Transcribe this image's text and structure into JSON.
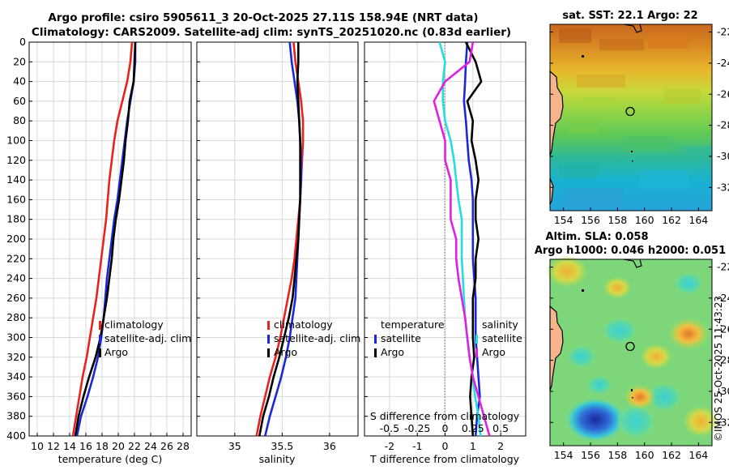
{
  "header": {
    "title_line1": "Argo profile: csiro 5905611_3 20-Oct-2025 27.11S 158.94E (NRT data)",
    "title_line2": "Climatology: CARS2009. Satellite-adj clim: synTS_20251020.nc (0.83d earlier)"
  },
  "stamp": "©IMOS 25-Oct-2025 11:43:23",
  "colors": {
    "climatology": "#e8221c",
    "satellite": "#1a28d8",
    "argo": "#000000",
    "temp_diff": "#22dede",
    "sal_diff": "#e020e0"
  },
  "chart_data": [
    {
      "type": "line",
      "panel": "temperature",
      "xlabel": "temperature (deg C)",
      "ylabel": "depth",
      "xlim": [
        9,
        29
      ],
      "ylim": [
        0,
        400
      ],
      "xticks": [
        "10",
        "12",
        "14",
        "16",
        "18",
        "20",
        "22",
        "24",
        "26",
        "28"
      ],
      "yticks": [
        "0",
        "20",
        "40",
        "60",
        "80",
        "100",
        "120",
        "140",
        "160",
        "180",
        "200",
        "220",
        "240",
        "260",
        "280",
        "300",
        "320",
        "340",
        "360",
        "380",
        "400"
      ],
      "legend": [
        "climatology",
        "satellite-adj. clim",
        "Argo"
      ],
      "depth": [
        0,
        20,
        40,
        60,
        80,
        100,
        120,
        140,
        160,
        180,
        200,
        220,
        240,
        260,
        280,
        300,
        320,
        340,
        360,
        380,
        400
      ],
      "series": [
        {
          "name": "climatology",
          "values": [
            21.7,
            21.5,
            21.1,
            20.5,
            19.9,
            19.5,
            19.2,
            18.9,
            18.7,
            18.5,
            18.2,
            17.9,
            17.6,
            17.3,
            16.9,
            16.5,
            16.1,
            15.6,
            15.2,
            14.8,
            14.4
          ]
        },
        {
          "name": "satellite-adj. clim",
          "values": [
            22.1,
            22.1,
            21.9,
            21.5,
            21.1,
            20.8,
            20.5,
            20.2,
            19.9,
            19.5,
            19.2,
            18.9,
            18.6,
            18.4,
            18.2,
            17.9,
            17.5,
            16.9,
            16.2,
            15.4,
            14.9
          ]
        },
        {
          "name": "Argo",
          "values": [
            22.1,
            22.0,
            21.9,
            21.4,
            21.2,
            20.9,
            20.7,
            20.4,
            20.1,
            19.7,
            19.4,
            19.2,
            18.9,
            18.6,
            18.2,
            17.8,
            17.2,
            16.4,
            15.7,
            15.1,
            14.7
          ]
        }
      ]
    },
    {
      "type": "line",
      "panel": "salinity",
      "xlabel": "salinity",
      "xlim": [
        34.6,
        36.3
      ],
      "ylim": [
        0,
        400
      ],
      "xticks": [
        "35",
        "35.5",
        "36"
      ],
      "xtick_values": [
        35,
        35.5,
        36
      ],
      "legend": [
        "climatology",
        "satellite-adj. clim",
        "Argo"
      ],
      "depth": [
        0,
        20,
        40,
        60,
        80,
        100,
        120,
        140,
        160,
        180,
        200,
        220,
        240,
        260,
        280,
        300,
        320,
        340,
        360,
        380,
        400
      ],
      "series": [
        {
          "name": "climatology",
          "values": [
            35.62,
            35.64,
            35.67,
            35.7,
            35.72,
            35.72,
            35.71,
            35.7,
            35.69,
            35.67,
            35.65,
            35.63,
            35.6,
            35.56,
            35.52,
            35.48,
            35.43,
            35.37,
            35.32,
            35.27,
            35.23
          ]
        },
        {
          "name": "satellite-adj. clim",
          "values": [
            35.58,
            35.6,
            35.63,
            35.66,
            35.68,
            35.69,
            35.7,
            35.7,
            35.69,
            35.68,
            35.67,
            35.66,
            35.65,
            35.64,
            35.61,
            35.58,
            35.54,
            35.49,
            35.43,
            35.37,
            35.32
          ]
        },
        {
          "name": "Argo",
          "values": [
            35.67,
            35.67,
            35.66,
            35.67,
            35.68,
            35.69,
            35.69,
            35.69,
            35.69,
            35.68,
            35.67,
            35.65,
            35.63,
            35.61,
            35.57,
            35.52,
            35.47,
            35.41,
            35.36,
            35.3,
            35.26
          ]
        }
      ]
    },
    {
      "type": "line",
      "panel": "difference",
      "xlabel": "T difference from climatology",
      "xlabel_top": "S difference from climatology",
      "xlim": [
        -2.9,
        2.9
      ],
      "ylim": [
        0,
        400
      ],
      "xticks": [
        "-2",
        "-1",
        "0",
        "1",
        "2"
      ],
      "xtick_values": [
        -2,
        -1,
        0,
        1,
        2
      ],
      "sticks": [
        "-0.5",
        "-0.25",
        "0",
        "0.25",
        "0.5"
      ],
      "legend_left_title": "temperature",
      "legend_right_title": "salinity",
      "legend_left": [
        "satellite",
        "Argo"
      ],
      "legend_right": [
        "satellite",
        "Argo"
      ],
      "depth": [
        0,
        20,
        40,
        60,
        80,
        100,
        120,
        140,
        160,
        180,
        200,
        220,
        240,
        260,
        280,
        300,
        320,
        340,
        360,
        380,
        400
      ],
      "series": [
        {
          "name": "temperature satellite",
          "values": [
            0.8,
            0.75,
            0.72,
            0.68,
            0.75,
            0.8,
            0.85,
            0.95,
            1.0,
            1.0,
            1.0,
            1.0,
            1.05,
            1.1,
            1.1,
            1.1,
            1.15,
            1.2,
            1.25,
            1.15,
            1.1
          ]
        },
        {
          "name": "temperature Argo",
          "values": [
            0.75,
            1.1,
            1.3,
            0.8,
            1.0,
            0.95,
            1.1,
            1.2,
            1.1,
            1.1,
            1.2,
            1.1,
            1.1,
            1.0,
            1.0,
            1.0,
            1.05,
            0.95,
            0.9,
            0.95,
            1.0
          ]
        },
        {
          "name": "salinity satellite",
          "values": [
            -0.05,
            0.0,
            -0.02,
            -0.02,
            0.0,
            0.05,
            0.08,
            0.1,
            0.12,
            0.15,
            0.15,
            0.15,
            0.16,
            0.17,
            0.18,
            0.2,
            0.22,
            0.25,
            0.27,
            0.3,
            0.32
          ]
        },
        {
          "name": "salinity Argo",
          "values": [
            0.25,
            0.22,
            0.0,
            -0.1,
            -0.05,
            0.0,
            0.0,
            0.05,
            0.05,
            0.05,
            0.1,
            0.1,
            0.12,
            0.15,
            0.18,
            0.2,
            0.22,
            0.25,
            0.3,
            0.35,
            0.4
          ]
        }
      ]
    },
    {
      "type": "heatmap",
      "panel": "sat_sst",
      "title": "sat. SST: 22.1 Argo: 22",
      "xlim": [
        153,
        165
      ],
      "ylim": [
        -33.5,
        -21.5
      ],
      "xticks": [
        "154",
        "156",
        "158",
        "160",
        "162",
        "164"
      ],
      "xtick_values": [
        154,
        156,
        158,
        160,
        162,
        164
      ],
      "yticks": [
        "-22",
        "-24",
        "-26",
        "-28",
        "-30",
        "-32"
      ],
      "ytick_values": [
        -22,
        -24,
        -26,
        -28,
        -30,
        -32
      ],
      "marker": {
        "lon": 158.94,
        "lat": -27.11
      }
    },
    {
      "type": "heatmap",
      "panel": "altim_sla",
      "title": "Altim. SLA: 0.058",
      "subtitle": "Argo h1000: 0.046 h2000: 0.051",
      "xlim": [
        153,
        165
      ],
      "ylim": [
        -33.5,
        -21.5
      ],
      "xticks": [
        "154",
        "156",
        "158",
        "160",
        "162",
        "164"
      ],
      "xtick_values": [
        154,
        156,
        158,
        160,
        162,
        164
      ],
      "yticks": [
        "-22",
        "-24",
        "-26",
        "-28",
        "-30",
        "-32"
      ],
      "ytick_values": [
        -22,
        -24,
        -26,
        -28,
        -30,
        -32
      ],
      "marker": {
        "lon": 158.94,
        "lat": -27.11
      }
    }
  ]
}
